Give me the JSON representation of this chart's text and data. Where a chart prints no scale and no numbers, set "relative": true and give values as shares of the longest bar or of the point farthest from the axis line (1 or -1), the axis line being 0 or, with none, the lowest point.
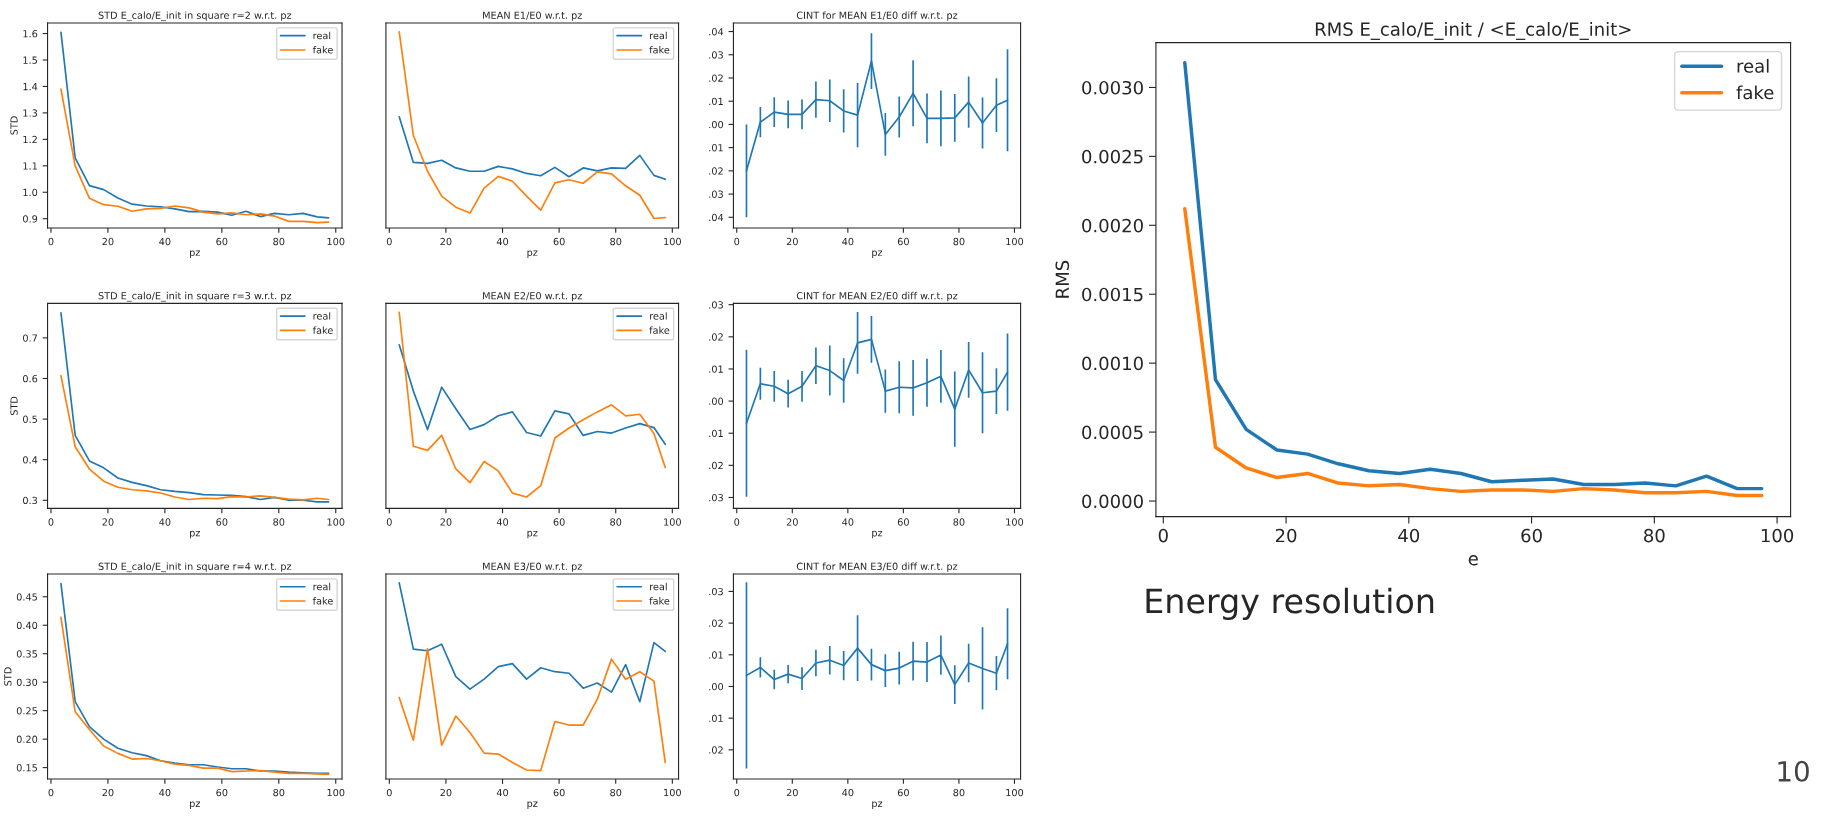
{
  "chart_data": [
    {
      "type": "line",
      "title": "STD E_calo/E_init in square r=2 w.r.t. pz",
      "xlabel": "pz",
      "ylabel": "STD",
      "legend": "top right",
      "x": [
        3.5,
        8.5,
        13.5,
        18.5,
        23.5,
        28.5,
        33.5,
        38.5,
        43.5,
        48.5,
        53.5,
        58.5,
        63.5,
        68.5,
        73.5,
        78.5,
        83.5,
        88.5,
        93.5,
        97.5
      ],
      "xlim": [
        -1.2,
        102.2
      ],
      "xticks": [
        0,
        20,
        40,
        60,
        80,
        100
      ],
      "ylim": [
        0.865,
        1.64
      ],
      "yticks": [
        {
          "value": 0.9,
          "label": "0.9"
        },
        {
          "value": 1.0,
          "label": "1.0"
        },
        {
          "value": 1.1,
          "label": "1.1"
        },
        {
          "value": 1.2,
          "label": "1.2"
        },
        {
          "value": 1.3,
          "label": "1.3"
        },
        {
          "value": 1.4,
          "label": "1.4"
        },
        {
          "value": 1.5,
          "label": "1.5"
        },
        {
          "value": 1.6,
          "label": "1.6"
        }
      ],
      "series": [
        {
          "name": "real",
          "color": "#1f77b4",
          "values": [
            1.605,
            1.13,
            1.025,
            1.01,
            0.978,
            0.955,
            0.948,
            0.945,
            0.937,
            0.927,
            0.928,
            0.925,
            0.913,
            0.928,
            0.908,
            0.92,
            0.915,
            0.92,
            0.907,
            0.903
          ]
        },
        {
          "name": "fake",
          "color": "#ff7f0e",
          "values": [
            1.39,
            1.1,
            0.977,
            0.953,
            0.947,
            0.928,
            0.937,
            0.939,
            0.948,
            0.941,
            0.925,
            0.918,
            0.922,
            0.915,
            0.918,
            0.91,
            0.89,
            0.89,
            0.885,
            0.887
          ]
        }
      ]
    },
    {
      "type": "line",
      "title": "MEAN E1/E0 w.r.t. pz",
      "xlabel": "pz",
      "legend": "top right",
      "relative": true,
      "x": [
        3.5,
        8.5,
        13.5,
        18.5,
        23.5,
        28.5,
        33.5,
        38.5,
        43.5,
        48.5,
        53.5,
        58.5,
        63.5,
        68.5,
        73.5,
        78.5,
        83.5,
        88.5,
        93.5,
        97.5
      ],
      "xlim": [
        -1.2,
        102.2
      ],
      "xticks": [
        0,
        20,
        40,
        60,
        80,
        100
      ],
      "series": [
        {
          "name": "real",
          "color": "#1f77b4",
          "values": [
            0.567,
            0.334,
            0.329,
            0.345,
            0.306,
            0.289,
            0.289,
            0.314,
            0.301,
            0.278,
            0.266,
            0.309,
            0.261,
            0.306,
            0.291,
            0.306,
            0.304,
            0.37,
            0.268,
            0.248
          ]
        },
        {
          "name": "fake",
          "color": "#ff7f0e",
          "values": [
            1.0,
            0.471,
            0.289,
            0.162,
            0.106,
            0.076,
            0.203,
            0.263,
            0.238,
            0.162,
            0.091,
            0.23,
            0.246,
            0.228,
            0.286,
            0.276,
            0.215,
            0.167,
            0.048,
            0.053
          ]
        }
      ]
    },
    {
      "type": "line",
      "title": "CINT for MEAN E1/E0 diff w.r.t. pz",
      "xlabel": "pz",
      "x": [
        3.5,
        8.5,
        13.5,
        18.5,
        23.5,
        28.5,
        33.5,
        38.5,
        43.5,
        48.5,
        53.5,
        58.5,
        63.5,
        68.5,
        73.5,
        78.5,
        83.5,
        88.5,
        93.5,
        97.5
      ],
      "xlim": [
        -1.2,
        102.2
      ],
      "xticks": [
        0,
        20,
        40,
        60,
        80,
        100
      ],
      "ylim": [
        -0.0446,
        0.0437
      ],
      "yticks": [
        {
          "value": 0.04,
          "label": ".04"
        },
        {
          "value": 0.03,
          "label": ".03"
        },
        {
          "value": 0.02,
          "label": ".02"
        },
        {
          "value": 0.01,
          "label": ".01"
        },
        {
          "value": 0.0,
          "label": ".00"
        },
        {
          "value": -0.01,
          "label": ".01"
        },
        {
          "value": -0.02,
          "label": ".02"
        },
        {
          "value": -0.03,
          "label": ".03"
        },
        {
          "value": -0.04,
          "label": ".04"
        }
      ],
      "series": [
        {
          "color": "#1f77b4",
          "values": [
            -0.02,
            0.001,
            0.0053,
            0.0043,
            0.0043,
            0.0107,
            0.0102,
            0.0058,
            0.004,
            0.0273,
            -0.0043,
            0.0032,
            0.0134,
            0.0026,
            0.0026,
            0.0028,
            0.0096,
            0.0006,
            0.0083,
            0.0104
          ],
          "errors": [
            0.02,
            0.0065,
            0.0064,
            0.006,
            0.0064,
            0.0078,
            0.0092,
            0.0093,
            0.0138,
            0.012,
            0.0092,
            0.0088,
            0.0142,
            0.0107,
            0.012,
            0.0103,
            0.011,
            0.011,
            0.0116,
            0.022
          ]
        }
      ]
    },
    {
      "type": "line",
      "title": "STD E_calo/E_init in square r=3 w.r.t. pz",
      "xlabel": "pz",
      "ylabel": "STD",
      "legend": "top right",
      "x": [
        3.5,
        8.5,
        13.5,
        18.5,
        23.5,
        28.5,
        33.5,
        38.5,
        43.5,
        48.5,
        53.5,
        58.5,
        63.5,
        68.5,
        73.5,
        78.5,
        83.5,
        88.5,
        93.5,
        97.5
      ],
      "xlim": [
        -1.2,
        102.2
      ],
      "xticks": [
        0,
        20,
        40,
        60,
        80,
        100
      ],
      "ylim": [
        0.28,
        0.785
      ],
      "yticks": [
        0.3,
        0.4,
        0.5,
        0.6,
        0.7
      ],
      "series": [
        {
          "name": "real",
          "color": "#1f77b4",
          "values": [
            0.762,
            0.46,
            0.397,
            0.38,
            0.355,
            0.344,
            0.336,
            0.326,
            0.322,
            0.319,
            0.314,
            0.313,
            0.312,
            0.309,
            0.302,
            0.307,
            0.3,
            0.3,
            0.296,
            0.296
          ]
        },
        {
          "name": "fake",
          "color": "#ff7f0e",
          "values": [
            0.607,
            0.432,
            0.377,
            0.347,
            0.332,
            0.326,
            0.323,
            0.318,
            0.308,
            0.302,
            0.305,
            0.304,
            0.309,
            0.308,
            0.311,
            0.307,
            0.303,
            0.301,
            0.305,
            0.302
          ]
        }
      ]
    },
    {
      "type": "line",
      "title": "MEAN E2/E0 w.r.t. pz",
      "xlabel": "pz",
      "legend": "top right",
      "relative": true,
      "x": [
        3.5,
        8.5,
        13.5,
        18.5,
        23.5,
        28.5,
        33.5,
        38.5,
        43.5,
        48.5,
        53.5,
        58.5,
        63.5,
        68.5,
        73.5,
        78.5,
        83.5,
        88.5,
        93.5,
        97.5
      ],
      "xlim": [
        -1.2,
        102.2
      ],
      "xticks": [
        0,
        20,
        40,
        60,
        80,
        100
      ],
      "series": [
        {
          "name": "real",
          "color": "#1f77b4",
          "values": [
            0.834,
            0.598,
            0.402,
            0.618,
            0.508,
            0.402,
            0.427,
            0.472,
            0.492,
            0.387,
            0.369,
            0.497,
            0.482,
            0.372,
            0.392,
            0.384,
            0.41,
            0.432,
            0.412,
            0.327
          ]
        },
        {
          "name": "fake",
          "color": "#ff7f0e",
          "values": [
            1.0,
            0.317,
            0.296,
            0.372,
            0.201,
            0.131,
            0.239,
            0.191,
            0.078,
            0.058,
            0.116,
            0.359,
            0.41,
            0.452,
            0.492,
            0.528,
            0.472,
            0.48,
            0.382,
            0.209
          ]
        }
      ]
    },
    {
      "type": "line",
      "title": "CINT for MEAN E2/E0 diff w.r.t. pz",
      "xlabel": "pz",
      "x": [
        3.5,
        8.5,
        13.5,
        18.5,
        23.5,
        28.5,
        33.5,
        38.5,
        43.5,
        48.5,
        53.5,
        58.5,
        63.5,
        68.5,
        73.5,
        78.5,
        83.5,
        88.5,
        93.5,
        97.5
      ],
      "xlim": [
        -1.2,
        102.2
      ],
      "xticks": [
        0,
        20,
        40,
        60,
        80,
        100
      ],
      "ylim": [
        -0.0334,
        0.0304
      ],
      "yticks": [
        {
          "value": 0.03,
          "label": ".03"
        },
        {
          "value": 0.02,
          "label": ".02"
        },
        {
          "value": 0.01,
          "label": ".01"
        },
        {
          "value": 0.0,
          "label": ".00"
        },
        {
          "value": -0.01,
          "label": ".01"
        },
        {
          "value": -0.02,
          "label": ".02"
        },
        {
          "value": -0.03,
          "label": ".03"
        }
      ],
      "series": [
        {
          "color": "#1f77b4",
          "values": [
            -0.0069,
            0.0054,
            0.0046,
            0.0023,
            0.0046,
            0.011,
            0.0095,
            0.0064,
            0.0181,
            0.0192,
            0.0031,
            0.0043,
            0.0041,
            0.0057,
            0.0077,
            -0.0025,
            0.0097,
            0.0026,
            0.0031,
            0.009
          ],
          "errors": [
            0.0229,
            0.005,
            0.0048,
            0.0043,
            0.0048,
            0.0057,
            0.0078,
            0.0069,
            0.0096,
            0.0073,
            0.0067,
            0.0081,
            0.0087,
            0.0075,
            0.0082,
            0.0117,
            0.0087,
            0.0126,
            0.0071,
            0.012
          ]
        }
      ]
    },
    {
      "type": "line",
      "title": "STD E_calo/E_init in square r=4 w.r.t. pz",
      "xlabel": "pz",
      "ylabel": "STD",
      "legend": "top right",
      "x": [
        3.5,
        8.5,
        13.5,
        18.5,
        23.5,
        28.5,
        33.5,
        38.5,
        43.5,
        48.5,
        53.5,
        58.5,
        63.5,
        68.5,
        73.5,
        78.5,
        83.5,
        88.5,
        93.5,
        97.5
      ],
      "xlim": [
        -1.2,
        102.2
      ],
      "xticks": [
        0,
        20,
        40,
        60,
        80,
        100
      ],
      "ylim": [
        0.13,
        0.49
      ],
      "yticks": [
        {
          "value": 0.15,
          "label": "0.15"
        },
        {
          "value": 0.2,
          "label": "0.20"
        },
        {
          "value": 0.25,
          "label": "0.25"
        },
        {
          "value": 0.3,
          "label": "0.30"
        },
        {
          "value": 0.35,
          "label": "0.35"
        },
        {
          "value": 0.4,
          "label": "0.40"
        },
        {
          "value": 0.45,
          "label": "0.45"
        }
      ],
      "series": [
        {
          "name": "real",
          "color": "#1f77b4",
          "values": [
            0.473,
            0.266,
            0.222,
            0.2,
            0.184,
            0.176,
            0.171,
            0.162,
            0.158,
            0.155,
            0.155,
            0.151,
            0.148,
            0.148,
            0.144,
            0.144,
            0.142,
            0.141,
            0.14,
            0.14
          ]
        },
        {
          "name": "fake",
          "color": "#ff7f0e",
          "values": [
            0.414,
            0.248,
            0.217,
            0.188,
            0.175,
            0.165,
            0.166,
            0.162,
            0.156,
            0.154,
            0.149,
            0.149,
            0.143,
            0.144,
            0.145,
            0.142,
            0.14,
            0.14,
            0.139,
            0.138
          ]
        }
      ]
    },
    {
      "type": "line",
      "title": "MEAN E3/E0 w.r.t. pz",
      "xlabel": "pz",
      "legend": "top right",
      "relative": true,
      "x": [
        3.5,
        8.5,
        13.5,
        18.5,
        23.5,
        28.5,
        33.5,
        38.5,
        43.5,
        48.5,
        53.5,
        58.5,
        63.5,
        68.5,
        73.5,
        78.5,
        83.5,
        88.5,
        93.5,
        97.5
      ],
      "xlim": [
        -1.2,
        102.2
      ],
      "xticks": [
        0,
        20,
        40,
        60,
        80,
        100
      ],
      "series": [
        {
          "name": "real",
          "color": "#1f77b4",
          "values": [
            1.0,
            0.662,
            0.654,
            0.687,
            0.522,
            0.458,
            0.509,
            0.573,
            0.588,
            0.509,
            0.567,
            0.547,
            0.539,
            0.463,
            0.489,
            0.443,
            0.583,
            0.394,
            0.695,
            0.651
          ]
        },
        {
          "name": "fake",
          "color": "#ff7f0e",
          "values": [
            0.415,
            0.198,
            0.664,
            0.173,
            0.321,
            0.237,
            0.132,
            0.127,
            0.084,
            0.046,
            0.043,
            0.293,
            0.275,
            0.275,
            0.407,
            0.611,
            0.509,
            0.547,
            0.499,
            0.084
          ]
        }
      ]
    },
    {
      "type": "line",
      "title": "CINT for MEAN E3/E0 diff w.r.t. pz",
      "xlabel": "pz",
      "x": [
        3.5,
        8.5,
        13.5,
        18.5,
        23.5,
        28.5,
        33.5,
        38.5,
        43.5,
        48.5,
        53.5,
        58.5,
        63.5,
        68.5,
        73.5,
        78.5,
        83.5,
        88.5,
        93.5,
        97.5
      ],
      "xlim": [
        -1.2,
        102.2
      ],
      "xticks": [
        0,
        20,
        40,
        60,
        80,
        100
      ],
      "ylim": [
        -0.0292,
        0.0355
      ],
      "yticks": [
        {
          "value": 0.03,
          "label": ".03"
        },
        {
          "value": 0.02,
          "label": ".02"
        },
        {
          "value": 0.01,
          "label": ".01"
        },
        {
          "value": 0.0,
          "label": ".00"
        },
        {
          "value": -0.01,
          "label": ".01"
        },
        {
          "value": -0.02,
          "label": ".02"
        }
      ],
      "series": [
        {
          "color": "#1f77b4",
          "values": [
            0.0035,
            0.006,
            0.0022,
            0.0039,
            0.0025,
            0.0074,
            0.0083,
            0.0066,
            0.0121,
            0.0069,
            0.005,
            0.0058,
            0.008,
            0.0077,
            0.0099,
            0.0006,
            0.0074,
            0.0057,
            0.0042,
            0.0135
          ],
          "errors": [
            0.0294,
            0.0032,
            0.0031,
            0.0029,
            0.0036,
            0.0042,
            0.0045,
            0.0046,
            0.0104,
            0.005,
            0.0052,
            0.0052,
            0.0061,
            0.0063,
            0.0062,
            0.0061,
            0.0061,
            0.013,
            0.0054,
            0.0112
          ]
        }
      ]
    },
    {
      "type": "line",
      "title": "RMS E_calo/E_init / <E_calo/E_init>",
      "xlabel": "e",
      "ylabel": "RMS",
      "legend": "top right",
      "x": [
        3.5,
        8.5,
        13.5,
        18.5,
        23.5,
        28.5,
        33.5,
        38.5,
        43.5,
        48.5,
        53.5,
        58.5,
        63.5,
        68.5,
        73.5,
        78.5,
        83.5,
        88.5,
        93.5,
        97.5
      ],
      "xlim": [
        -1.2,
        102.2
      ],
      "xticks": [
        0,
        20,
        40,
        60,
        80,
        100
      ],
      "ylim": [
        -0.000113,
        0.003325
      ],
      "yticks": [
        {
          "value": 0.0,
          "label": "0.0000"
        },
        {
          "value": 0.0005,
          "label": "0.0005"
        },
        {
          "value": 0.001,
          "label": "0.0010"
        },
        {
          "value": 0.0015,
          "label": "0.0015"
        },
        {
          "value": 0.002,
          "label": "0.0020"
        },
        {
          "value": 0.0025,
          "label": "0.0025"
        },
        {
          "value": 0.003,
          "label": "0.0030"
        }
      ],
      "annotations": [
        "Energy resolution",
        "10"
      ],
      "series": [
        {
          "name": "real",
          "color": "#1f77b4",
          "values": [
            0.00318,
            0.00088,
            0.00052,
            0.00037,
            0.00034,
            0.00027,
            0.00022,
            0.0002,
            0.00023,
            0.0002,
            0.00014,
            0.00015,
            0.00016,
            0.00012,
            0.00012,
            0.00013,
            0.00011,
            0.00018,
            9e-05,
            9e-05
          ]
        },
        {
          "name": "fake",
          "color": "#ff7f0e",
          "values": [
            0.00212,
            0.00039,
            0.00024,
            0.00017,
            0.0002,
            0.00013,
            0.00011,
            0.00012,
            9e-05,
            7e-05,
            8e-05,
            8e-05,
            7e-05,
            9e-05,
            8e-05,
            6e-05,
            6e-05,
            7e-05,
            4e-05,
            4e-05
          ]
        }
      ]
    }
  ]
}
